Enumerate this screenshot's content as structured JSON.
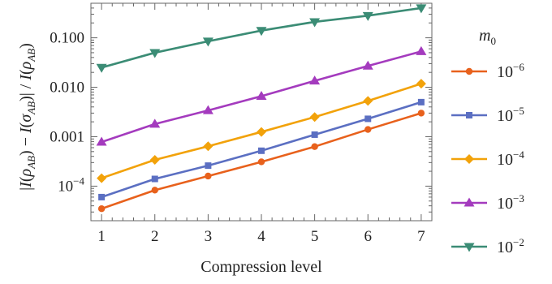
{
  "chart_data": {
    "type": "line",
    "x": [
      1,
      2,
      3,
      4,
      5,
      6,
      7
    ],
    "xlabel": "Compression level",
    "ylabel": "|I(ρ_AB) − I(σ_AB)| / I(ρ_AB)",
    "ylabel_parts": {
      "open": "|",
      "i1": "I",
      "rho": "ρ",
      "ab1": "AB",
      "minus": "−",
      "i2": "I",
      "sigma": "σ",
      "ab2": "AB",
      "slash": "| / ",
      "i3": "I",
      "rho2": "ρ",
      "ab3": "AB"
    },
    "xlim": [
      0.8,
      7.2
    ],
    "ylim": [
      2e-05,
      0.5
    ],
    "y_scale": "log",
    "x_ticks": [
      "1",
      "2",
      "3",
      "4",
      "5",
      "6",
      "7"
    ],
    "y_ticks": [
      {
        "value": 0.0001,
        "label": "10",
        "exp": "−4"
      },
      {
        "value": 0.001,
        "label": "0.001"
      },
      {
        "value": 0.01,
        "label": "0.010"
      },
      {
        "value": 0.1,
        "label": "0.100"
      }
    ],
    "legend_title": {
      "base": "m",
      "sub": "0"
    },
    "legend_position": "right",
    "series": [
      {
        "name": "10^-6",
        "base": "10",
        "exp": "−6",
        "color": "#E8611C",
        "marker": "circle",
        "values": [
          3.5e-05,
          8.3e-05,
          0.00016,
          0.00031,
          0.00063,
          0.0014,
          0.003
        ]
      },
      {
        "name": "10^-5",
        "base": "10",
        "exp": "−5",
        "color": "#5B6FC2",
        "marker": "square",
        "values": [
          6e-05,
          0.00014,
          0.00026,
          0.00052,
          0.0011,
          0.0023,
          0.005
        ]
      },
      {
        "name": "10^-4",
        "base": "10",
        "exp": "−4",
        "color": "#F2A20A",
        "marker": "diamond",
        "values": [
          0.000145,
          0.00034,
          0.00064,
          0.00125,
          0.0025,
          0.0053,
          0.0118
        ]
      },
      {
        "name": "10^-3",
        "base": "10",
        "exp": "−3",
        "color": "#A43BBE",
        "marker": "triangle-up",
        "values": [
          0.00078,
          0.0018,
          0.0034,
          0.0066,
          0.0135,
          0.027,
          0.053
        ]
      },
      {
        "name": "10^-2",
        "base": "10",
        "exp": "−2",
        "color": "#3B8C75",
        "marker": "triangle-down",
        "values": [
          0.025,
          0.05,
          0.085,
          0.14,
          0.21,
          0.28,
          0.4
        ]
      }
    ]
  }
}
